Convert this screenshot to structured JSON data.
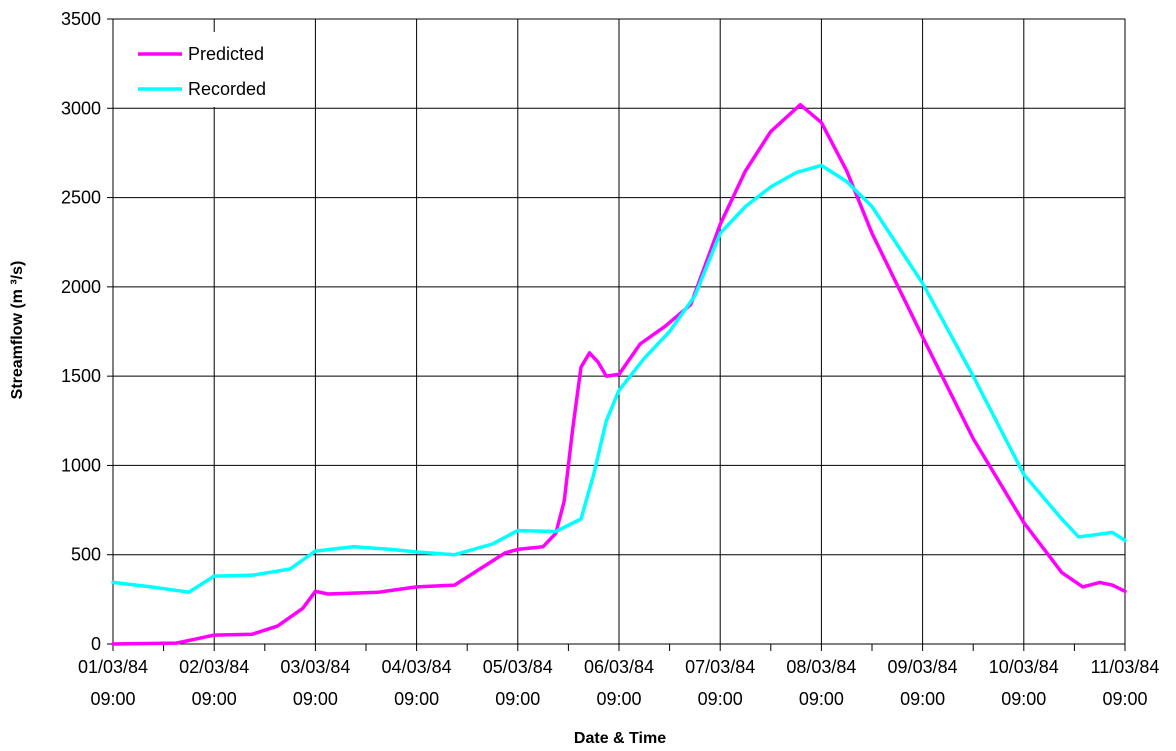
{
  "chart_data": {
    "type": "line",
    "title": "",
    "xlabel": "Date & Time",
    "ylabel": "Streamflow (m ³/s)",
    "ylim": [
      0,
      3500
    ],
    "yticks": [
      0,
      500,
      1000,
      1500,
      2000,
      2500,
      3000,
      3500
    ],
    "xlim": [
      "1984-03-01T09:00",
      "1984-03-11T09:00"
    ],
    "xtick_labels": [
      [
        "01/03/84",
        "09:00"
      ],
      [
        "02/03/84",
        "09:00"
      ],
      [
        "03/03/84",
        "09:00"
      ],
      [
        "04/03/84",
        "09:00"
      ],
      [
        "05/03/84",
        "09:00"
      ],
      [
        "06/03/84",
        "09:00"
      ],
      [
        "07/03/84",
        "09:00"
      ],
      [
        "08/03/84",
        "09:00"
      ],
      [
        "09/03/84",
        "09:00"
      ],
      [
        "10/03/84",
        "09:00"
      ],
      [
        "11/03/84",
        "09:00"
      ]
    ],
    "grid": true,
    "legend": "top-left",
    "series": [
      {
        "name": "Predicted",
        "color": "#ff00ff",
        "points": [
          [
            "1984-03-01T09:00",
            0
          ],
          [
            "1984-03-02T00:00",
            5
          ],
          [
            "1984-03-02T06:00",
            35
          ],
          [
            "1984-03-02T09:00",
            50
          ],
          [
            "1984-03-02T18:00",
            55
          ],
          [
            "1984-03-03T00:00",
            100
          ],
          [
            "1984-03-03T06:00",
            200
          ],
          [
            "1984-03-03T09:00",
            295
          ],
          [
            "1984-03-03T12:00",
            280
          ],
          [
            "1984-03-04T00:00",
            290
          ],
          [
            "1984-03-04T09:00",
            320
          ],
          [
            "1984-03-04T18:00",
            330
          ],
          [
            "1984-03-05T00:00",
            420
          ],
          [
            "1984-03-05T06:00",
            510
          ],
          [
            "1984-03-05T09:00",
            530
          ],
          [
            "1984-03-05T15:00",
            545
          ],
          [
            "1984-03-05T18:00",
            620
          ],
          [
            "1984-03-05T20:00",
            800
          ],
          [
            "1984-03-05T22:00",
            1200
          ],
          [
            "1984-03-06T00:00",
            1550
          ],
          [
            "1984-03-06T02:00",
            1630
          ],
          [
            "1984-03-06T04:00",
            1580
          ],
          [
            "1984-03-06T06:00",
            1500
          ],
          [
            "1984-03-06T09:00",
            1510
          ],
          [
            "1984-03-06T14:00",
            1680
          ],
          [
            "1984-03-06T20:00",
            1780
          ],
          [
            "1984-03-07T02:00",
            1900
          ],
          [
            "1984-03-07T09:00",
            2350
          ],
          [
            "1984-03-07T15:00",
            2650
          ],
          [
            "1984-03-07T21:00",
            2870
          ],
          [
            "1984-03-08T04:00",
            3020
          ],
          [
            "1984-03-08T09:00",
            2920
          ],
          [
            "1984-03-08T15:00",
            2650
          ],
          [
            "1984-03-08T21:00",
            2300
          ],
          [
            "1984-03-09T09:00",
            1720
          ],
          [
            "1984-03-09T21:00",
            1150
          ],
          [
            "1984-03-10T09:00",
            680
          ],
          [
            "1984-03-10T18:00",
            400
          ],
          [
            "1984-03-10T23:00",
            320
          ],
          [
            "1984-03-11T03:00",
            345
          ],
          [
            "1984-03-11T06:00",
            330
          ],
          [
            "1984-03-11T09:00",
            295
          ]
        ]
      },
      {
        "name": "Recorded",
        "color": "#00ffff",
        "points": [
          [
            "1984-03-01T09:00",
            345
          ],
          [
            "1984-03-01T18:00",
            320
          ],
          [
            "1984-03-02T03:00",
            290
          ],
          [
            "1984-03-02T09:00",
            380
          ],
          [
            "1984-03-02T18:00",
            385
          ],
          [
            "1984-03-03T03:00",
            420
          ],
          [
            "1984-03-03T09:00",
            520
          ],
          [
            "1984-03-03T18:00",
            545
          ],
          [
            "1984-03-04T03:00",
            530
          ],
          [
            "1984-03-04T09:00",
            515
          ],
          [
            "1984-03-04T18:00",
            500
          ],
          [
            "1984-03-05T03:00",
            560
          ],
          [
            "1984-03-05T09:00",
            635
          ],
          [
            "1984-03-05T18:00",
            630
          ],
          [
            "1984-03-06T00:00",
            700
          ],
          [
            "1984-03-06T03:00",
            950
          ],
          [
            "1984-03-06T06:00",
            1250
          ],
          [
            "1984-03-06T09:00",
            1420
          ],
          [
            "1984-03-06T15:00",
            1600
          ],
          [
            "1984-03-06T21:00",
            1750
          ],
          [
            "1984-03-07T03:00",
            1950
          ],
          [
            "1984-03-07T09:00",
            2300
          ],
          [
            "1984-03-07T15:00",
            2450
          ],
          [
            "1984-03-07T21:00",
            2560
          ],
          [
            "1984-03-08T03:00",
            2640
          ],
          [
            "1984-03-08T09:00",
            2680
          ],
          [
            "1984-03-08T15:00",
            2590
          ],
          [
            "1984-03-08T21:00",
            2450
          ],
          [
            "1984-03-09T09:00",
            2020
          ],
          [
            "1984-03-09T21:00",
            1500
          ],
          [
            "1984-03-10T09:00",
            950
          ],
          [
            "1984-03-10T18:00",
            700
          ],
          [
            "1984-03-10T22:00",
            600
          ],
          [
            "1984-03-11T03:00",
            615
          ],
          [
            "1984-03-11T06:00",
            625
          ],
          [
            "1984-03-11T09:00",
            580
          ]
        ]
      }
    ]
  }
}
